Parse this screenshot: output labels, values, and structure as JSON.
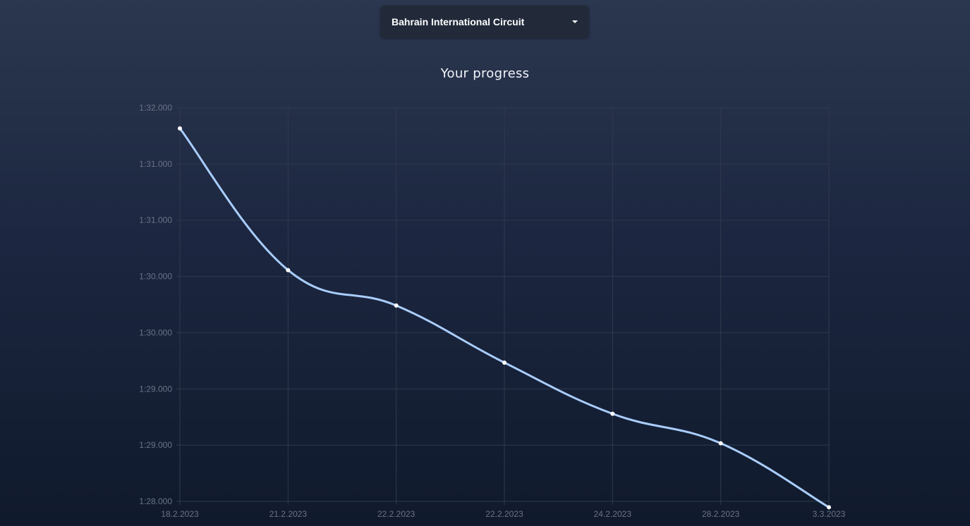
{
  "selector": {
    "selected": "Bahrain International Circuit",
    "icon": "chevron-down-icon"
  },
  "chart_data": {
    "type": "line",
    "title": "Your progress",
    "xlabel": "",
    "ylabel": "",
    "categories": [
      "18.2.2023",
      "21.2.2023",
      "22.2.2023",
      "22.2.2023",
      "24.2.2023",
      "28.2.2023",
      "3.3.2023"
    ],
    "y_tick_labels": [
      "1:32.000",
      "1:31.000",
      "1:31.000",
      "1:30.000",
      "1:30.000",
      "1:29.000",
      "1:29.000",
      "1:28.000"
    ],
    "ylim": [
      88.0,
      92.0
    ],
    "series": [
      {
        "values": [
          91.79,
          90.35,
          89.99,
          89.41,
          88.89,
          88.59,
          87.94
        ],
        "color": "#a9cdfc"
      }
    ],
    "grid": true,
    "legend": "none",
    "colors": {
      "line": "#a9cdfc",
      "point": "#ffffff",
      "grid": "#2f3a4d",
      "tick_text": "#6a7386"
    }
  }
}
